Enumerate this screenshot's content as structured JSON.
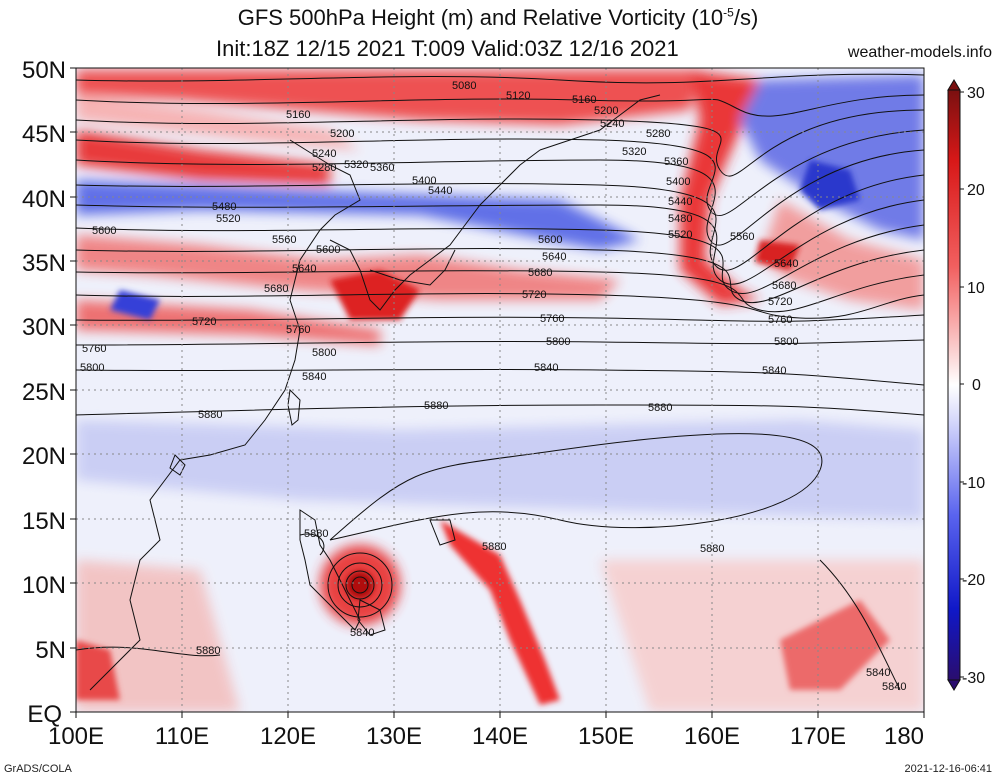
{
  "header": {
    "title_main": "GFS 500hPa Height (m) and Relative Vorticity (10",
    "title_exp": "-5",
    "title_end": "/s)",
    "subtitle": "Init:18Z 12/15 2021 T:009 Valid:03Z 12/16 2021",
    "site": "weather-models.info"
  },
  "footer": {
    "left": "GrADS/COLA",
    "right": "2021-12-16-06:41"
  },
  "map": {
    "lat_labels": [
      "50N",
      "45N",
      "40N",
      "35N",
      "30N",
      "25N",
      "20N",
      "15N",
      "10N",
      "5N",
      "EQ"
    ],
    "lon_labels": [
      "100E",
      "110E",
      "120E",
      "130E",
      "140E",
      "150E",
      "160E",
      "170E",
      "180"
    ],
    "contour_labels": [
      "5080",
      "5120",
      "5160",
      "5160",
      "5200",
      "5240",
      "5280",
      "5200",
      "5240",
      "5280",
      "5320",
      "5320",
      "5360",
      "5360",
      "5400",
      "5400",
      "5440",
      "5440",
      "5480",
      "5480",
      "5520",
      "5520",
      "5560",
      "5560",
      "5600",
      "5600",
      "5600",
      "5640",
      "5640",
      "5640",
      "5680",
      "5680",
      "5680",
      "5720",
      "5720",
      "5720",
      "5760",
      "5760",
      "5760",
      "5760",
      "5800",
      "5800",
      "5800",
      "5800",
      "5840",
      "5840",
      "5840",
      "5840",
      "5880",
      "5880",
      "5880",
      "5880",
      "5880",
      "5880",
      "5880",
      "5840",
      "5840"
    ]
  },
  "colorbar": {
    "ticks": [
      "30",
      "20",
      "10",
      "0",
      "-10",
      "-20",
      "-30"
    ]
  },
  "colors": {
    "positive": "#e8232b",
    "negative": "#1d2fd6",
    "neutral": "#f4f4f8",
    "contour": "#111111"
  }
}
